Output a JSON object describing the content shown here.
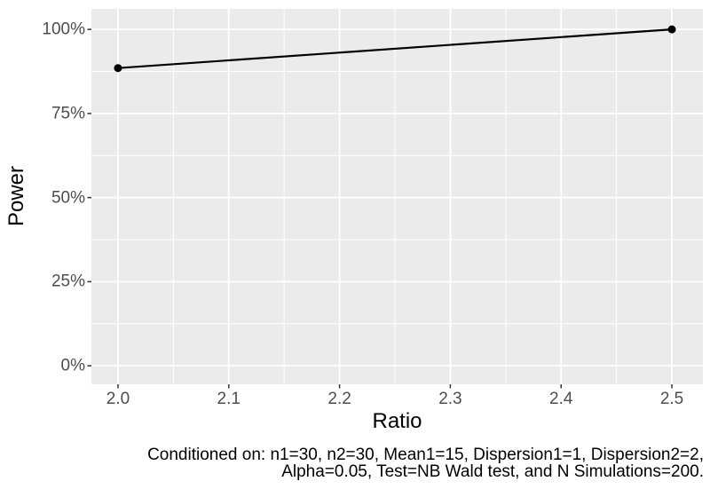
{
  "chart_data": {
    "type": "line",
    "title": "",
    "xlabel": "Ratio",
    "ylabel": "Power",
    "x": [
      2.0,
      2.5
    ],
    "series": [
      {
        "name": "Power",
        "values": [
          0.885,
          1.0
        ]
      }
    ],
    "x_ticks": {
      "values": [
        2.0,
        2.1,
        2.2,
        2.3,
        2.4,
        2.5
      ],
      "labels": [
        "2.0",
        "2.1",
        "2.2",
        "2.3",
        "2.4",
        "2.5"
      ]
    },
    "y_ticks": {
      "values": [
        0,
        0.25,
        0.5,
        0.75,
        1.0
      ],
      "labels": [
        "0%",
        "25%",
        "50%",
        "75%",
        "100%"
      ]
    },
    "xlim": [
      1.976,
      2.528
    ],
    "ylim": [
      -0.055,
      1.061
    ],
    "grid": "major-and-minor-white-on-gray",
    "legend": "none",
    "caption": {
      "align": "right",
      "lines": [
        "Conditioned on: n1=30, n2=30, Mean1=15, Dispersion1=1, Dispersion2=2,",
        "Alpha=0.05, Test=NB Wald test, and N Simulations=200."
      ]
    },
    "colors": {
      "background": "#FFFFFF",
      "panel_bg": "#EBEBEB",
      "grid": "#FFFFFF",
      "axis_text": "#4D4D4D",
      "title_text": "#000000",
      "tick_marks": "#333333",
      "line": "#000000",
      "point": "#000000"
    }
  }
}
